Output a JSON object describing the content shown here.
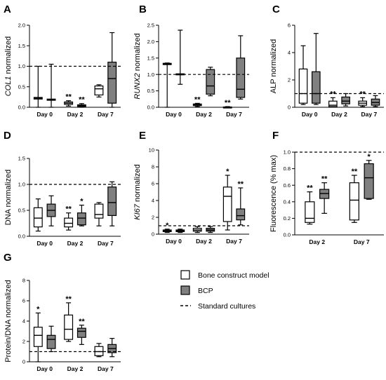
{
  "colors": {
    "bone": "#ffffff",
    "bcp": "#808080",
    "stroke": "#000000"
  },
  "legend": {
    "items": [
      {
        "label": "Bone construct model",
        "kind": "box",
        "color": "#ffffff"
      },
      {
        "label": "BCP",
        "kind": "box",
        "color": "#808080"
      },
      {
        "label": "Standard cultures",
        "kind": "dashed"
      }
    ]
  },
  "chart_data": [
    {
      "letter": "A",
      "type": "box",
      "ylabel": "COL1 normalized",
      "ylabel_italic_part": "COL1",
      "ylim": [
        0,
        2.0
      ],
      "yticks": [
        0,
        0.5,
        1.0,
        1.5,
        2.0
      ],
      "decimals": 1,
      "reference_line": 1.0,
      "categories": [
        "Day 0",
        "Day 2",
        "Day 7"
      ],
      "series": [
        {
          "name": "Bone construct model",
          "boxes": [
            {
              "min": 0.0,
              "q1": 0.2,
              "median": 0.22,
              "q3": 0.24,
              "max": 1.0,
              "sig": ""
            },
            {
              "min": 0.03,
              "q1": 0.07,
              "median": 0.1,
              "q3": 0.13,
              "max": 0.16,
              "sig": "**"
            },
            {
              "min": 0.25,
              "q1": 0.3,
              "median": 0.45,
              "q3": 0.52,
              "max": 0.55,
              "sig": ""
            }
          ]
        },
        {
          "name": "BCP",
          "boxes": [
            {
              "min": 0.0,
              "q1": 0.17,
              "median": 0.18,
              "q3": 0.2,
              "max": 1.05,
              "sig": ""
            },
            {
              "min": 0.0,
              "q1": 0.02,
              "median": 0.04,
              "q3": 0.06,
              "max": 0.09,
              "sig": "**"
            },
            {
              "min": 0.0,
              "q1": 0.1,
              "median": 0.7,
              "q3": 1.1,
              "max": 1.82,
              "sig": ""
            }
          ]
        }
      ]
    },
    {
      "letter": "B",
      "type": "box",
      "ylabel": "RUNX2 normalized",
      "ylabel_italic_part": "RUNX2",
      "ylim": [
        0,
        2.5
      ],
      "yticks": [
        0,
        0.5,
        1.0,
        1.5,
        2.0,
        2.5
      ],
      "decimals": 1,
      "reference_line": 1.0,
      "categories": [
        "Day 0",
        "Day 2",
        "Day 7"
      ],
      "series": [
        {
          "name": "Bone construct model",
          "boxes": [
            {
              "min": 0.0,
              "q1": 1.3,
              "median": 1.32,
              "q3": 1.34,
              "max": 1.35,
              "sig": ""
            },
            {
              "min": 0.02,
              "q1": 0.05,
              "median": 0.08,
              "q3": 0.1,
              "max": 0.12,
              "sig": "**"
            },
            {
              "min": 0.0,
              "q1": 0.0,
              "median": 0.0,
              "q3": 0.01,
              "max": 0.02,
              "sig": "**"
            }
          ]
        },
        {
          "name": "BCP",
          "boxes": [
            {
              "min": 0.7,
              "q1": 1.0,
              "median": 1.01,
              "q3": 1.02,
              "max": 2.35,
              "sig": ""
            },
            {
              "min": 0.35,
              "q1": 0.4,
              "median": 0.65,
              "q3": 1.15,
              "max": 1.22,
              "sig": ""
            },
            {
              "min": 0.25,
              "q1": 0.3,
              "median": 0.55,
              "q3": 1.5,
              "max": 2.18,
              "sig": ""
            }
          ]
        }
      ]
    },
    {
      "letter": "C",
      "type": "box",
      "ylabel": "ALP normalized",
      "ylabel_italic_part": "",
      "ylim": [
        0,
        6
      ],
      "yticks": [
        0,
        2,
        4,
        6
      ],
      "decimals": 0,
      "reference_line": 1.0,
      "categories": [
        "Day 0",
        "Day 2",
        "Day 7"
      ],
      "series": [
        {
          "name": "Bone construct model",
          "boxes": [
            {
              "min": 0.2,
              "q1": 0.3,
              "median": 1.0,
              "q3": 2.8,
              "max": 4.5,
              "sig": ""
            },
            {
              "min": 0.02,
              "q1": 0.05,
              "median": 0.15,
              "q3": 0.45,
              "max": 0.7,
              "sig": "**"
            },
            {
              "min": 0.05,
              "q1": 0.15,
              "median": 0.3,
              "q3": 0.45,
              "max": 0.7,
              "sig": "**"
            }
          ]
        },
        {
          "name": "BCP",
          "boxes": [
            {
              "min": 0.2,
              "q1": 0.3,
              "median": 1.0,
              "q3": 2.6,
              "max": 5.4,
              "sig": ""
            },
            {
              "min": 0.1,
              "q1": 0.25,
              "median": 0.45,
              "q3": 0.75,
              "max": 1.0,
              "sig": ""
            },
            {
              "min": 0.05,
              "q1": 0.15,
              "median": 0.35,
              "q3": 0.6,
              "max": 0.85,
              "sig": ""
            }
          ]
        }
      ]
    },
    {
      "letter": "D",
      "type": "box",
      "ylabel": "DNA normalized",
      "ylabel_italic_part": "",
      "ylim": [
        0,
        1.5
      ],
      "yticks": [
        0,
        0.5,
        1.0,
        1.5
      ],
      "decimals": 1,
      "reference_line": 1.0,
      "categories": [
        "Day 0",
        "Day 2",
        "Day 7"
      ],
      "series": [
        {
          "name": "Bone construct model",
          "boxes": [
            {
              "min": 0.1,
              "q1": 0.18,
              "median": 0.35,
              "q3": 0.55,
              "max": 0.72,
              "sig": ""
            },
            {
              "min": 0.12,
              "q1": 0.18,
              "median": 0.25,
              "q3": 0.35,
              "max": 0.45,
              "sig": "**"
            },
            {
              "min": 0.2,
              "q1": 0.35,
              "median": 0.42,
              "q3": 0.62,
              "max": 0.65,
              "sig": ""
            }
          ]
        },
        {
          "name": "BCP",
          "boxes": [
            {
              "min": 0.2,
              "q1": 0.38,
              "median": 0.5,
              "q3": 0.62,
              "max": 0.78,
              "sig": ""
            },
            {
              "min": 0.2,
              "q1": 0.22,
              "median": 0.35,
              "q3": 0.45,
              "max": 0.6,
              "sig": "*"
            },
            {
              "min": 0.2,
              "q1": 0.4,
              "median": 0.65,
              "q3": 0.95,
              "max": 1.05,
              "sig": ""
            }
          ]
        }
      ]
    },
    {
      "letter": "E",
      "type": "box",
      "ylabel": "KI67 normalized",
      "ylabel_italic_part": "KI67",
      "ylim": [
        0,
        10
      ],
      "yticks": [
        0,
        2,
        4,
        6,
        8,
        10
      ],
      "decimals": 0,
      "reference_line": 1.0,
      "categories": [
        "Day 0",
        "Day 2",
        "Day 7"
      ],
      "series": [
        {
          "name": "Bone construct model",
          "boxes": [
            {
              "min": 0.2,
              "q1": 0.3,
              "median": 0.4,
              "q3": 0.5,
              "max": 0.6,
              "sig": "*"
            },
            {
              "min": 0.2,
              "q1": 0.35,
              "median": 0.5,
              "q3": 0.7,
              "max": 0.9,
              "sig": ""
            },
            {
              "min": 0.5,
              "q1": 1.5,
              "median": 4.5,
              "q3": 5.6,
              "max": 7.0,
              "sig": "*"
            }
          ]
        },
        {
          "name": "BCP",
          "boxes": [
            {
              "min": 0.2,
              "q1": 0.3,
              "median": 0.4,
              "q3": 0.5,
              "max": 0.6,
              "sig": ""
            },
            {
              "min": 0.2,
              "q1": 0.35,
              "median": 0.5,
              "q3": 0.7,
              "max": 0.9,
              "sig": ""
            },
            {
              "min": 1.1,
              "q1": 1.7,
              "median": 2.2,
              "q3": 3.0,
              "max": 5.5,
              "sig": "**"
            }
          ]
        }
      ]
    },
    {
      "letter": "F",
      "type": "box",
      "ylabel": "Fluorescence (% max)",
      "ylabel_italic_part": "",
      "ylim": [
        0,
        1.0
      ],
      "yticks": [
        0,
        0.2,
        0.4,
        0.6,
        0.8,
        1.0
      ],
      "decimals": 1,
      "reference_line": 1.0,
      "categories": [
        "Day 2",
        "Day 7"
      ],
      "series": [
        {
          "name": "Bone construct model",
          "boxes": [
            {
              "min": 0.13,
              "q1": 0.15,
              "median": 0.2,
              "q3": 0.4,
              "max": 0.52,
              "sig": "**"
            },
            {
              "min": 0.15,
              "q1": 0.18,
              "median": 0.42,
              "q3": 0.63,
              "max": 0.72,
              "sig": "**"
            }
          ]
        },
        {
          "name": "BCP",
          "boxes": [
            {
              "min": 0.26,
              "q1": 0.44,
              "median": 0.5,
              "q3": 0.55,
              "max": 0.63,
              "sig": "**"
            },
            {
              "min": 0.43,
              "q1": 0.44,
              "median": 0.69,
              "q3": 0.86,
              "max": 0.9,
              "sig": "*"
            }
          ]
        }
      ]
    },
    {
      "letter": "G",
      "type": "box",
      "ylabel": "Protein/DNA normalized",
      "ylabel_italic_part": "",
      "ylim": [
        0,
        8
      ],
      "yticks": [
        0,
        2,
        4,
        6,
        8
      ],
      "decimals": 0,
      "reference_line": 1.0,
      "categories": [
        "Day 0",
        "Day 2",
        "Day 7"
      ],
      "series": [
        {
          "name": "Bone construct model",
          "boxes": [
            {
              "min": 0.0,
              "q1": 1.5,
              "median": 2.6,
              "q3": 3.4,
              "max": 4.8,
              "sig": "*"
            },
            {
              "min": 2.0,
              "q1": 2.2,
              "median": 3.2,
              "q3": 4.6,
              "max": 5.8,
              "sig": "**"
            },
            {
              "min": 0.5,
              "q1": 0.6,
              "median": 1.0,
              "q3": 1.5,
              "max": 1.8,
              "sig": ""
            }
          ]
        },
        {
          "name": "BCP",
          "boxes": [
            {
              "min": 1.0,
              "q1": 1.3,
              "median": 2.2,
              "q3": 2.6,
              "max": 3.5,
              "sig": ""
            },
            {
              "min": 1.7,
              "q1": 2.4,
              "median": 3.0,
              "q3": 3.3,
              "max": 3.6,
              "sig": "**"
            },
            {
              "min": 0.5,
              "q1": 0.9,
              "median": 1.3,
              "q3": 1.7,
              "max": 2.3,
              "sig": ""
            }
          ]
        }
      ]
    }
  ]
}
